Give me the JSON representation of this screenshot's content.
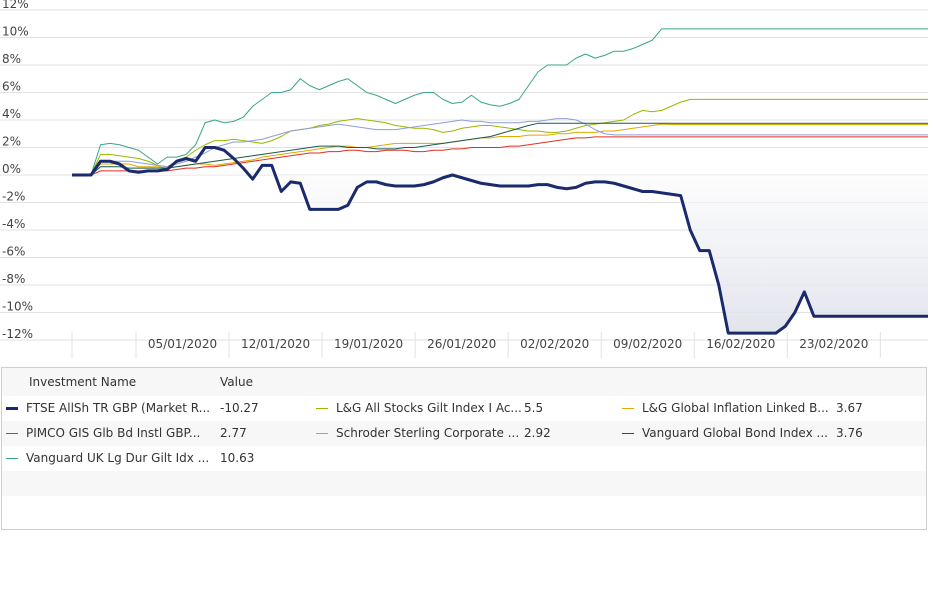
{
  "chart_data": {
    "type": "line",
    "ylim": [
      -12,
      12
    ],
    "ytick_labels": [
      "12%",
      "10%",
      "8%",
      "6%",
      "4%",
      "2%",
      "0%",
      "-2%",
      "-4%",
      "-6%",
      "-8%",
      "-10%",
      "-12%"
    ],
    "xtick_labels": [
      "05/01/2020",
      "12/01/2020",
      "19/01/2020",
      "26/01/2020",
      "02/02/2020",
      "09/02/2020",
      "16/02/2020",
      "23/02/2020"
    ],
    "grid": true,
    "x_days": [
      0,
      2,
      3,
      4,
      5,
      6,
      7,
      8,
      9,
      10,
      11,
      12,
      13,
      14,
      15,
      16,
      17,
      18,
      19,
      20,
      21,
      22,
      23,
      24,
      25,
      26,
      27,
      28,
      29,
      30,
      31,
      32,
      33,
      34,
      35,
      36,
      37,
      38,
      39,
      40,
      41,
      42,
      43,
      44,
      45,
      46,
      47,
      48,
      49,
      50,
      51,
      52,
      53,
      54,
      55,
      56,
      57,
      58,
      59,
      60,
      61,
      62,
      63,
      64,
      65,
      66,
      67,
      68,
      69,
      70,
      71,
      72,
      73,
      74,
      75,
      76,
      77,
      78,
      79,
      80,
      81,
      82,
      83,
      84,
      85,
      86,
      87,
      88,
      89,
      90
    ],
    "series": [
      {
        "name": "FTSE AllSh TR GBP (Market R...",
        "color": "#1a2a6c",
        "width": 3,
        "area": true,
        "values": [
          0,
          0,
          1,
          1,
          0.8,
          0.3,
          0.2,
          0.3,
          0.3,
          0.4,
          1,
          1.2,
          1,
          2,
          2,
          1.8,
          1.2,
          0.5,
          -0.3,
          0.7,
          0.7,
          -1.2,
          -0.5,
          -0.6,
          -2.5,
          -2.5,
          -2.5,
          -2.5,
          -2.2,
          -0.9,
          -0.5,
          -0.5,
          -0.7,
          -0.8,
          -0.8,
          -0.8,
          -0.7,
          -0.5,
          -0.2,
          0,
          -0.2,
          -0.4,
          -0.6,
          -0.7,
          -0.8,
          -0.8,
          -0.8,
          -0.8,
          -0.7,
          -0.7,
          -0.9,
          -1,
          -0.9,
          -0.6,
          -0.5,
          -0.5,
          -0.6,
          -0.8,
          -1,
          -1.2,
          -1.2,
          -1.3,
          -1.4,
          -1.5,
          -4,
          -5.5,
          -5.5,
          -8,
          -11.5,
          -11.5,
          -11.5,
          -11.5,
          -11.5,
          -11.5,
          -11,
          -10,
          -8.5,
          -10.27,
          -10.27,
          -10.27,
          -10.27,
          -10.27,
          -10.27,
          -10.27,
          -10.27,
          -10.27,
          -10.27,
          -10.27,
          -10.27,
          -10.27
        ]
      },
      {
        "name": "L&G All Stocks Gilt Index I Ac...",
        "value": "5.5",
        "color": "#9ab800",
        "width": 1,
        "values": [
          0,
          0,
          1.5,
          1.5,
          1.4,
          1.3,
          1.2,
          1,
          0.7,
          0.6,
          1,
          1.3,
          1.8,
          2.2,
          2.5,
          2.5,
          2.6,
          2.5,
          2.4,
          2.3,
          2.5,
          2.8,
          3.2,
          3.3,
          3.4,
          3.6,
          3.7,
          3.9,
          4,
          4.1,
          4,
          3.9,
          3.8,
          3.6,
          3.5,
          3.4,
          3.4,
          3.3,
          3.1,
          3.2,
          3.4,
          3.5,
          3.6,
          3.6,
          3.5,
          3.4,
          3.3,
          3.2,
          3.2,
          3.1,
          3.1,
          3.2,
          3.4,
          3.6,
          3.7,
          3.8,
          3.9,
          4,
          4.4,
          4.7,
          4.6,
          4.7,
          5,
          5.3,
          5.5,
          5.5,
          5.5,
          5.5,
          5.5,
          5.5,
          5.5,
          5.5,
          5.5,
          5.5,
          5.5,
          5.5,
          5.5,
          5.5,
          5.5,
          5.5,
          5.5,
          5.5,
          5.5,
          5.5,
          5.5,
          5.5,
          5.5,
          5.5,
          5.5,
          5.5
        ]
      },
      {
        "name": "L&G Global Inflation Linked B...",
        "value": "3.67",
        "color": "#e0a800",
        "width": 1,
        "values": [
          0,
          0,
          0.8,
          0.8,
          0.8,
          0.8,
          0.6,
          0.6,
          0.6,
          0.5,
          0.6,
          0.7,
          0.8,
          0.8,
          0.7,
          0.8,
          0.9,
          1,
          1.1,
          1.3,
          1.4,
          1.5,
          1.6,
          1.7,
          1.8,
          1.9,
          2,
          2.1,
          2.1,
          2,
          2,
          2.1,
          2.2,
          2.3,
          2.3,
          2.3,
          2.3,
          2.3,
          2.3,
          2.4,
          2.5,
          2.6,
          2.7,
          2.7,
          2.8,
          2.8,
          2.8,
          2.9,
          2.9,
          2.9,
          3,
          3,
          3.1,
          3.1,
          3.1,
          3.2,
          3.2,
          3.3,
          3.4,
          3.5,
          3.6,
          3.7,
          3.67,
          3.67,
          3.67,
          3.67,
          3.67,
          3.67,
          3.67,
          3.67,
          3.67,
          3.67,
          3.67,
          3.67,
          3.67,
          3.67,
          3.67,
          3.67,
          3.67,
          3.67,
          3.67,
          3.67,
          3.67,
          3.67,
          3.67,
          3.67,
          3.67,
          3.67,
          3.67,
          3.67
        ]
      },
      {
        "name": "PIMCO GIS Glb Bd Instl GBP...",
        "value": "2.77",
        "color": "#e03020",
        "width": 1,
        "values": [
          0,
          0,
          0.3,
          0.3,
          0.3,
          0.3,
          0.3,
          0.3,
          0.3,
          0.3,
          0.4,
          0.5,
          0.5,
          0.6,
          0.6,
          0.7,
          0.8,
          0.9,
          1,
          1.1,
          1.2,
          1.3,
          1.4,
          1.5,
          1.6,
          1.6,
          1.7,
          1.7,
          1.8,
          1.8,
          1.7,
          1.7,
          1.8,
          1.8,
          1.8,
          1.7,
          1.7,
          1.8,
          1.8,
          1.9,
          1.9,
          2,
          2,
          2,
          2,
          2.1,
          2.1,
          2.2,
          2.3,
          2.4,
          2.5,
          2.6,
          2.7,
          2.7,
          2.77,
          2.77,
          2.77,
          2.77,
          2.77,
          2.77,
          2.77,
          2.77,
          2.77,
          2.77,
          2.77,
          2.77,
          2.77,
          2.77,
          2.77,
          2.77,
          2.77,
          2.77,
          2.77,
          2.77,
          2.77,
          2.77,
          2.77,
          2.77,
          2.77,
          2.77,
          2.77,
          2.77,
          2.77,
          2.77,
          2.77,
          2.77,
          2.77,
          2.77,
          2.77,
          2.77
        ]
      },
      {
        "name": "Schroder Sterling Corporate ...",
        "value": "2.92",
        "color": "#8c9fd6",
        "width": 1,
        "values": [
          0,
          0,
          1,
          1,
          1,
          1,
          0.9,
          0.8,
          0.7,
          0.6,
          0.8,
          1,
          1.3,
          1.6,
          2,
          2.2,
          2.4,
          2.4,
          2.5,
          2.6,
          2.8,
          3,
          3.2,
          3.3,
          3.4,
          3.5,
          3.6,
          3.7,
          3.6,
          3.5,
          3.4,
          3.3,
          3.3,
          3.3,
          3.4,
          3.5,
          3.6,
          3.7,
          3.8,
          3.9,
          4,
          3.9,
          3.9,
          3.8,
          3.8,
          3.8,
          3.8,
          3.9,
          3.9,
          4,
          4.1,
          4.1,
          4,
          3.7,
          3.3,
          3,
          2.92,
          2.92,
          2.92,
          2.92,
          2.92,
          2.92,
          2.92,
          2.92,
          2.92,
          2.92,
          2.92,
          2.92,
          2.92,
          2.92,
          2.92,
          2.92,
          2.92,
          2.92,
          2.92,
          2.92,
          2.92,
          2.92,
          2.92,
          2.92,
          2.92,
          2.92,
          2.92,
          2.92,
          2.92,
          2.92,
          2.92,
          2.92,
          2.92,
          2.92
        ]
      },
      {
        "name": "Vanguard Global Bond Index ...",
        "value": "3.76",
        "color": "#1a5a50",
        "width": 1,
        "values": [
          0,
          0,
          0.6,
          0.6,
          0.6,
          0.5,
          0.5,
          0.5,
          0.5,
          0.5,
          0.6,
          0.7,
          0.8,
          0.9,
          1,
          1.1,
          1.2,
          1.3,
          1.4,
          1.5,
          1.6,
          1.7,
          1.8,
          1.9,
          2,
          2.1,
          2.1,
          2.1,
          2,
          2,
          2,
          1.9,
          1.9,
          1.9,
          2,
          2,
          2.1,
          2.2,
          2.3,
          2.4,
          2.5,
          2.6,
          2.7,
          2.8,
          3,
          3.2,
          3.4,
          3.6,
          3.76,
          3.76,
          3.76,
          3.76,
          3.76,
          3.76,
          3.76,
          3.76,
          3.76,
          3.76,
          3.76,
          3.76,
          3.76,
          3.76,
          3.76,
          3.76,
          3.76,
          3.76,
          3.76,
          3.76,
          3.76,
          3.76,
          3.76,
          3.76,
          3.76,
          3.76,
          3.76,
          3.76,
          3.76,
          3.76,
          3.76,
          3.76,
          3.76,
          3.76,
          3.76,
          3.76,
          3.76,
          3.76,
          3.76,
          3.76,
          3.76,
          3.76
        ]
      },
      {
        "name": "Vanguard UK Lg Dur Gilt Idx ...",
        "value": "10.63",
        "color": "#3aa58a",
        "width": 1,
        "values": [
          0,
          0,
          2.2,
          2.3,
          2.2,
          2,
          1.8,
          1.3,
          0.8,
          1.3,
          1.3,
          1.5,
          2.2,
          3.8,
          4,
          3.8,
          3.9,
          4.2,
          5,
          5.5,
          6,
          6,
          6.2,
          7,
          6.5,
          6.2,
          6.5,
          6.8,
          7,
          6.5,
          6,
          5.8,
          5.5,
          5.2,
          5.5,
          5.8,
          6,
          6,
          5.5,
          5.2,
          5.3,
          5.8,
          5.3,
          5.1,
          5,
          5.2,
          5.5,
          6.5,
          7.5,
          8,
          8,
          8,
          8.5,
          8.8,
          8.5,
          8.7,
          9,
          9,
          9.2,
          9.5,
          9.8,
          10.63,
          10.63,
          10.63,
          10.63,
          10.63,
          10.63,
          10.63,
          10.63,
          10.63,
          10.63,
          10.63,
          10.63,
          10.63,
          10.63,
          10.63,
          10.63,
          10.63,
          10.63,
          10.63,
          10.63,
          10.63,
          10.63,
          10.63,
          10.63,
          10.63,
          10.63,
          10.63,
          10.63,
          10.63
        ]
      }
    ]
  },
  "legend": {
    "header_name": "Investment Name",
    "header_value": "Value",
    "rows": [
      [
        {
          "name": "FTSE AllSh TR GBP (Market R...",
          "value": "-10.27",
          "color": "#1a2a6c",
          "thick": true
        },
        {
          "name": "L&G All Stocks Gilt Index I Ac...",
          "value": "5.5",
          "color": "#9ab800"
        },
        {
          "name": "L&G Global Inflation Linked B...",
          "value": "3.67",
          "color": "#e0a800"
        }
      ],
      [
        {
          "name": "PIMCO GIS Glb Bd Instl GBP...",
          "value": "2.77",
          "color": "#e03020"
        },
        {
          "name": "Schroder Sterling Corporate ...",
          "value": "2.92",
          "color": "#8c9fd6"
        },
        {
          "name": "Vanguard Global Bond Index ...",
          "value": "3.76",
          "color": "#1a5a50"
        }
      ],
      [
        {
          "name": "Vanguard UK Lg Dur Gilt Idx ...",
          "value": "10.63",
          "color": "#3aa58a"
        }
      ]
    ]
  }
}
